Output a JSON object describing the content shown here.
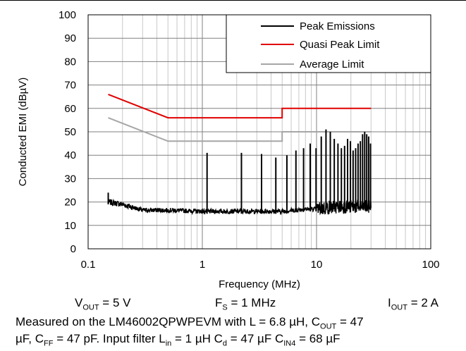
{
  "chart_data": {
    "type": "line",
    "xscale": "log",
    "xlim": [
      0.1,
      100
    ],
    "ylim": [
      0,
      100
    ],
    "xticks": [
      "0.1",
      "1",
      "10",
      "100"
    ],
    "yticks": [
      "0",
      "10",
      "20",
      "30",
      "40",
      "50",
      "60",
      "70",
      "80",
      "90",
      "100"
    ],
    "xlabel": "Frequency (MHz)",
    "ylabel": "Conducted EMI  (dBµV)",
    "grid": true,
    "legend_position": "top-right",
    "series": [
      {
        "name": "Peak Emissions",
        "color": "#000000",
        "noise_floor": [
          [
            0.15,
            20
          ],
          [
            0.2,
            19
          ],
          [
            0.3,
            16.5
          ],
          [
            0.5,
            16.5
          ],
          [
            1,
            16
          ],
          [
            2,
            16
          ],
          [
            3,
            16
          ],
          [
            5,
            16
          ],
          [
            8,
            17
          ],
          [
            10,
            17
          ],
          [
            15,
            18
          ],
          [
            30,
            18
          ]
        ],
        "peaks": [
          [
            0.15,
            24
          ],
          [
            1.1,
            41
          ],
          [
            2.2,
            41
          ],
          [
            3.3,
            40.5
          ],
          [
            4.4,
            39
          ],
          [
            5.5,
            40
          ],
          [
            6.6,
            42
          ],
          [
            7.7,
            43
          ],
          [
            8.8,
            45
          ],
          [
            9.9,
            43
          ],
          [
            11,
            48
          ],
          [
            12.1,
            51
          ],
          [
            13.2,
            50
          ],
          [
            14.3,
            47
          ],
          [
            15.4,
            45
          ],
          [
            16.5,
            43
          ],
          [
            17.6,
            44
          ],
          [
            18.7,
            47
          ],
          [
            19.8,
            46
          ],
          [
            20.9,
            42
          ],
          [
            22,
            43
          ],
          [
            23.1,
            45
          ],
          [
            24.2,
            46
          ],
          [
            25.3,
            49
          ],
          [
            26.4,
            50
          ],
          [
            27.5,
            49
          ],
          [
            28.6,
            48
          ],
          [
            29.7,
            45
          ]
        ]
      },
      {
        "name": "Quasi Peak Limit",
        "color": "#e00000",
        "points": [
          [
            0.15,
            66
          ],
          [
            0.5,
            56
          ],
          [
            5,
            56
          ],
          [
            5,
            60
          ],
          [
            30,
            60
          ]
        ]
      },
      {
        "name": "Average Limit",
        "color": "#a6a6a6",
        "points": [
          [
            0.15,
            56
          ],
          [
            0.5,
            46
          ],
          [
            5,
            46
          ],
          [
            5,
            50
          ],
          [
            30,
            50
          ]
        ]
      }
    ]
  },
  "conditions": {
    "vout_sym": "V",
    "vout_sub": "OUT",
    "vout_val": " = 5 V",
    "fs_sym": "F",
    "fs_sub": "S",
    "fs_val": " = 1 MHz",
    "iout_sym": "I",
    "iout_sub": "OUT",
    "iout_val": " = 2 A"
  },
  "caption": {
    "l1_a": "Measured on the LM46002QPWPEVM with L = 6.8 µH, C",
    "l1_sub": "OUT",
    "l1_b": " = 47",
    "l2_a": "µF, C",
    "l2_sub1": "FF",
    "l2_b": " = 47 pF. Input filter L",
    "l2_sub2": "in",
    "l2_c": " = 1 µH C",
    "l2_sub3": "d",
    "l2_d": " = 47 µF C",
    "l2_sub4": "IN4",
    "l2_e": " = 68 µF"
  }
}
